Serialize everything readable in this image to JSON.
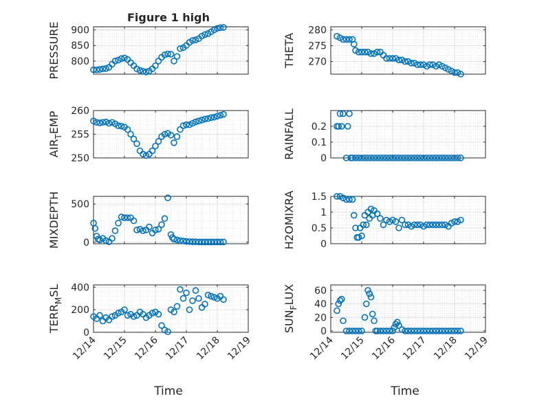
{
  "figure": {
    "title": "Figure 1 high",
    "xlabel": "Time",
    "background": "#ffffff",
    "marker_color": "#0072BD",
    "grid_color": "#d8d8d8"
  },
  "chart_data": [
    {
      "type": "scatter",
      "ylabel": "PRESSURE",
      "xlim": [
        "12/14",
        "12/19"
      ],
      "xticks": [
        "12/14",
        "12/15",
        "12/16",
        "12/17",
        "12/18",
        "12/19"
      ],
      "ylim": [
        758,
        910
      ],
      "yticks": [
        800,
        850,
        900
      ],
      "grid": true,
      "x": [
        0,
        0.1,
        0.2,
        0.3,
        0.4,
        0.5,
        0.6,
        0.7,
        0.8,
        0.9,
        1.0,
        1.1,
        1.2,
        1.3,
        1.4,
        1.5,
        1.6,
        1.7,
        1.8,
        1.9,
        2.0,
        2.1,
        2.2,
        2.3,
        2.4,
        2.5,
        2.6,
        2.7,
        2.8,
        2.9,
        3.0,
        3.1,
        3.2,
        3.3,
        3.4,
        3.5,
        3.6,
        3.7,
        3.8,
        3.9,
        4.0,
        4.1,
        4.2
      ],
      "y": [
        772,
        772,
        773,
        775,
        776,
        780,
        790,
        800,
        803,
        808,
        810,
        805,
        795,
        785,
        775,
        770,
        767,
        765,
        768,
        775,
        785,
        800,
        812,
        820,
        823,
        822,
        800,
        815,
        840,
        843,
        850,
        860,
        866,
        868,
        872,
        880,
        885,
        888,
        894,
        900,
        905,
        907,
        908
      ]
    },
    {
      "type": "scatter",
      "ylabel": "THETA",
      "xlim": [
        "12/14",
        "12/19"
      ],
      "xticks": [
        "12/14",
        "12/15",
        "12/16",
        "12/17",
        "12/18",
        "12/19"
      ],
      "ylim": [
        266,
        281
      ],
      "yticks": [
        270,
        275,
        280
      ],
      "grid": true,
      "x": [
        0.2,
        0.3,
        0.4,
        0.5,
        0.6,
        0.7,
        0.75,
        0.8,
        0.9,
        1.0,
        1.1,
        1.2,
        1.3,
        1.4,
        1.5,
        1.6,
        1.7,
        1.8,
        1.9,
        2.0,
        2.1,
        2.2,
        2.3,
        2.4,
        2.5,
        2.6,
        2.7,
        2.8,
        2.9,
        3.0,
        3.1,
        3.2,
        3.3,
        3.4,
        3.5,
        3.6,
        3.7,
        3.8,
        3.9,
        4.0,
        4.1,
        4.2
      ],
      "y": [
        278,
        277.5,
        277,
        277,
        277,
        277,
        275.5,
        273.5,
        273,
        273,
        273,
        273,
        272.5,
        272.5,
        273,
        273,
        272,
        271,
        271,
        271,
        271,
        270.5,
        270.5,
        270,
        270,
        269.5,
        269.5,
        269,
        269,
        269,
        268.5,
        269,
        269,
        268.5,
        269,
        268.5,
        268,
        267.5,
        267,
        266.5,
        266.5,
        266
      ]
    },
    {
      "type": "scatter",
      "ylabel": "AIR_TEMP",
      "xlim": [
        "12/14",
        "12/19"
      ],
      "xticks": [
        "12/14",
        "12/15",
        "12/16",
        "12/17",
        "12/18",
        "12/19"
      ],
      "ylim": [
        250,
        260
      ],
      "yticks": [
        250,
        255,
        260
      ],
      "grid": true,
      "x": [
        0,
        0.1,
        0.2,
        0.3,
        0.4,
        0.5,
        0.6,
        0.7,
        0.8,
        0.9,
        1.0,
        1.1,
        1.2,
        1.3,
        1.4,
        1.5,
        1.6,
        1.7,
        1.8,
        1.9,
        2.0,
        2.1,
        2.2,
        2.3,
        2.4,
        2.5,
        2.6,
        2.7,
        2.8,
        2.9,
        3.0,
        3.1,
        3.2,
        3.3,
        3.4,
        3.5,
        3.6,
        3.7,
        3.8,
        3.9,
        4.0,
        4.1,
        4.2
      ],
      "y": [
        257.8,
        257.5,
        257.4,
        257.5,
        257.6,
        257.3,
        257.5,
        257.2,
        256.8,
        256.7,
        256.5,
        256.0,
        255.0,
        254.0,
        253.0,
        251.5,
        250.8,
        250.5,
        250.8,
        251.5,
        252.5,
        253.5,
        254.5,
        255.0,
        255.2,
        254.8,
        253.2,
        254.5,
        256.0,
        256.8,
        257.0,
        257.0,
        257.3,
        257.6,
        257.8,
        258.0,
        258.2,
        258.3,
        258.5,
        258.6,
        258.8,
        259.0,
        259.2
      ]
    },
    {
      "type": "scatter",
      "ylabel": "RAINFALL",
      "xlim": [
        "12/14",
        "12/19"
      ],
      "xticks": [
        "12/14",
        "12/15",
        "12/16",
        "12/17",
        "12/18",
        "12/19"
      ],
      "ylim": [
        0,
        0.3
      ],
      "yticks": [
        0,
        0.1,
        0.2
      ],
      "yticklabels": [
        "0",
        "0.1",
        "0.2"
      ],
      "grid": true,
      "x": [
        0.2,
        0.25,
        0.3,
        0.35,
        0.4,
        0.5,
        0.55,
        0.6,
        0.65,
        0.7,
        0.8,
        0.9,
        1.0,
        1.1,
        1.2,
        1.3,
        1.4,
        1.5,
        1.6,
        1.7,
        1.8,
        1.9,
        2.0,
        2.1,
        2.2,
        2.3,
        2.4,
        2.5,
        2.6,
        2.7,
        2.8,
        2.9,
        3.0,
        3.1,
        3.2,
        3.3,
        3.4,
        3.5,
        3.6,
        3.7,
        3.8,
        3.9,
        4.0,
        4.1,
        4.2
      ],
      "y": [
        0.2,
        0.2,
        0.28,
        0.2,
        0.28,
        0,
        0.2,
        0.28,
        0,
        0,
        0,
        0,
        0,
        0,
        0,
        0,
        0,
        0,
        0,
        0,
        0,
        0,
        0,
        0,
        0,
        0,
        0,
        0,
        0,
        0,
        0,
        0,
        0,
        0,
        0,
        0,
        0,
        0,
        0,
        0,
        0,
        0,
        0,
        0,
        0
      ]
    },
    {
      "type": "scatter",
      "ylabel": "MIXDEPTH",
      "xlim": [
        "12/14",
        "12/19"
      ],
      "xticks": [
        "12/14",
        "12/15",
        "12/16",
        "12/17",
        "12/18",
        "12/19"
      ],
      "ylim": [
        -20,
        600
      ],
      "yticks": [
        0,
        500
      ],
      "grid": true,
      "x": [
        0,
        0.05,
        0.1,
        0.15,
        0.2,
        0.3,
        0.4,
        0.5,
        0.6,
        0.7,
        0.8,
        0.9,
        1.0,
        1.1,
        1.2,
        1.3,
        1.4,
        1.5,
        1.6,
        1.7,
        1.8,
        1.9,
        2.0,
        2.1,
        2.2,
        2.3,
        2.4,
        2.5,
        2.55,
        2.6,
        2.7,
        2.8,
        2.9,
        3.0,
        3.1,
        3.2,
        3.3,
        3.4,
        3.5,
        3.6,
        3.7,
        3.8,
        3.9,
        4.0,
        4.1,
        4.2
      ],
      "y": [
        250,
        180,
        80,
        40,
        30,
        50,
        20,
        5,
        50,
        150,
        250,
        330,
        320,
        320,
        320,
        280,
        160,
        170,
        150,
        160,
        200,
        120,
        160,
        170,
        230,
        310,
        580,
        100,
        60,
        40,
        30,
        20,
        15,
        10,
        8,
        5,
        5,
        3,
        3,
        3,
        3,
        3,
        3,
        3,
        3,
        3
      ]
    },
    {
      "type": "scatter",
      "ylabel": "H2OMIXRA",
      "xlim": [
        "12/14",
        "12/19"
      ],
      "xticks": [
        "12/14",
        "12/15",
        "12/16",
        "12/17",
        "12/18",
        "12/19"
      ],
      "ylim": [
        0,
        1.5
      ],
      "yticks": [
        0,
        0.5,
        1,
        1.5
      ],
      "yticklabels": [
        "0",
        "0.5",
        "1",
        "1.5"
      ],
      "grid": true,
      "x": [
        0.2,
        0.3,
        0.4,
        0.5,
        0.6,
        0.7,
        0.75,
        0.8,
        0.85,
        0.9,
        0.95,
        1.0,
        1.05,
        1.1,
        1.15,
        1.2,
        1.25,
        1.3,
        1.35,
        1.4,
        1.5,
        1.6,
        1.7,
        1.8,
        1.9,
        2.0,
        2.1,
        2.2,
        2.3,
        2.4,
        2.5,
        2.6,
        2.7,
        2.8,
        2.9,
        3.0,
        3.1,
        3.2,
        3.3,
        3.4,
        3.5,
        3.6,
        3.7,
        3.8,
        3.9,
        4.0,
        4.1,
        4.2
      ],
      "y": [
        1.5,
        1.5,
        1.45,
        1.4,
        1.4,
        1.4,
        0.9,
        0.5,
        0.2,
        0.2,
        0.5,
        0.25,
        0.6,
        0.9,
        0.6,
        1.0,
        0.8,
        1.1,
        0.9,
        1.05,
        0.95,
        0.8,
        0.6,
        0.75,
        0.7,
        0.75,
        0.7,
        0.5,
        0.75,
        0.6,
        0.6,
        0.55,
        0.6,
        0.6,
        0.6,
        0.55,
        0.6,
        0.6,
        0.6,
        0.6,
        0.6,
        0.6,
        0.6,
        0.55,
        0.65,
        0.7,
        0.7,
        0.75
      ]
    },
    {
      "type": "scatter",
      "ylabel": "TERR_MSL",
      "xlim": [
        "12/14",
        "12/19"
      ],
      "xticks": [
        "12/14",
        "12/15",
        "12/16",
        "12/17",
        "12/18",
        "12/19"
      ],
      "ylim": [
        0,
        420
      ],
      "yticks": [
        0,
        200,
        400
      ],
      "grid": true,
      "x": [
        0,
        0.1,
        0.2,
        0.3,
        0.4,
        0.5,
        0.6,
        0.7,
        0.8,
        0.9,
        1.0,
        1.1,
        1.2,
        1.3,
        1.4,
        1.5,
        1.6,
        1.7,
        1.8,
        1.9,
        2.0,
        2.1,
        2.2,
        2.3,
        2.4,
        2.5,
        2.6,
        2.7,
        2.8,
        2.9,
        3.0,
        3.1,
        3.2,
        3.3,
        3.4,
        3.5,
        3.6,
        3.7,
        3.8,
        3.9,
        4.0,
        4.1,
        4.2
      ],
      "y": [
        140,
        120,
        150,
        100,
        130,
        110,
        140,
        150,
        170,
        180,
        200,
        150,
        160,
        140,
        150,
        180,
        160,
        130,
        150,
        170,
        180,
        160,
        60,
        20,
        5,
        200,
        180,
        230,
        380,
        300,
        350,
        200,
        280,
        370,
        300,
        220,
        250,
        330,
        320,
        310,
        300,
        320,
        290
      ]
    },
    {
      "type": "scatter",
      "ylabel": "SUN_FLUX",
      "xlim": [
        "12/14",
        "12/19"
      ],
      "xticks": [
        "12/14",
        "12/15",
        "12/16",
        "12/17",
        "12/18",
        "12/19"
      ],
      "ylim": [
        -2,
        68
      ],
      "yticks": [
        0,
        20,
        40,
        60
      ],
      "grid": true,
      "x": [
        0.2,
        0.25,
        0.3,
        0.35,
        0.4,
        0.5,
        0.6,
        0.7,
        0.8,
        0.9,
        1.0,
        1.1,
        1.15,
        1.2,
        1.25,
        1.3,
        1.35,
        1.4,
        1.45,
        1.5,
        1.6,
        1.7,
        1.8,
        1.9,
        2.0,
        2.05,
        2.1,
        2.15,
        2.2,
        2.3,
        2.4,
        2.5,
        2.6,
        2.7,
        2.8,
        2.9,
        3.0,
        3.1,
        3.2,
        3.3,
        3.4,
        3.5,
        3.6,
        3.7,
        3.8,
        3.9,
        4.0,
        4.1,
        4.2
      ],
      "y": [
        30,
        40,
        45,
        47,
        15,
        0,
        0,
        0,
        0,
        0,
        0,
        20,
        40,
        60,
        55,
        50,
        25,
        15,
        0,
        0,
        0,
        0,
        0,
        0,
        0,
        5,
        10,
        13,
        8,
        2,
        0,
        0,
        0,
        0,
        0,
        0,
        0,
        0,
        0,
        0,
        0,
        0,
        0,
        0,
        0,
        0,
        0,
        0,
        0
      ]
    }
  ]
}
